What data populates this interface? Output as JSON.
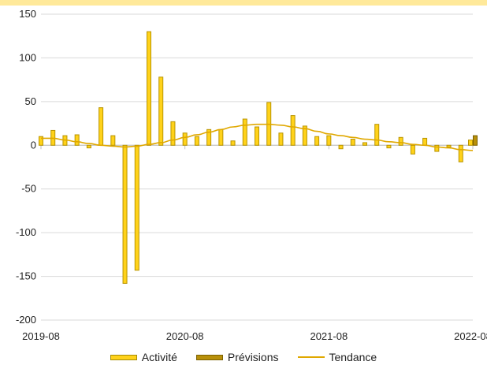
{
  "chart_data": {
    "type": "bar",
    "title": "",
    "xlabel": "",
    "ylabel": "",
    "ylim": [
      -200,
      150
    ],
    "yticks": [
      150,
      100,
      50,
      0,
      -50,
      -100,
      -150,
      -200
    ],
    "x_tick_labels": [
      "2019-08",
      "2020-08",
      "2021-08",
      "2022-08"
    ],
    "grid": true,
    "legend_position": "bottom",
    "series": [
      {
        "name": "Activité",
        "kind": "bar",
        "color": "#ffd21a",
        "border": "#b89400",
        "points": [
          {
            "x": "2019-08",
            "y": 10
          },
          {
            "x": "2019-09",
            "y": 17
          },
          {
            "x": "2019-10",
            "y": 11
          },
          {
            "x": "2019-11",
            "y": 12
          },
          {
            "x": "2019-12",
            "y": -3
          },
          {
            "x": "2020-01",
            "y": 43
          },
          {
            "x": "2020-02",
            "y": 11
          },
          {
            "x": "2020-03",
            "y": -158
          },
          {
            "x": "2020-04",
            "y": -143
          },
          {
            "x": "2020-05",
            "y": 130
          },
          {
            "x": "2020-06",
            "y": 78
          },
          {
            "x": "2020-07",
            "y": 27
          },
          {
            "x": "2020-08",
            "y": 14
          },
          {
            "x": "2020-09",
            "y": 10
          },
          {
            "x": "2020-10",
            "y": 18
          },
          {
            "x": "2020-11",
            "y": 18
          },
          {
            "x": "2020-12",
            "y": 5
          },
          {
            "x": "2021-01",
            "y": 30
          },
          {
            "x": "2021-02",
            "y": 21
          },
          {
            "x": "2021-03",
            "y": 49
          },
          {
            "x": "2021-04",
            "y": 14
          },
          {
            "x": "2021-05",
            "y": 34
          },
          {
            "x": "2021-06",
            "y": 22
          },
          {
            "x": "2021-07",
            "y": 10
          },
          {
            "x": "2021-08",
            "y": 11
          },
          {
            "x": "2021-09",
            "y": -4
          },
          {
            "x": "2021-10",
            "y": 7
          },
          {
            "x": "2021-11",
            "y": 3
          },
          {
            "x": "2021-12",
            "y": 24
          },
          {
            "x": "2022-01",
            "y": -3
          },
          {
            "x": "2022-02",
            "y": 9
          },
          {
            "x": "2022-03",
            "y": -10
          },
          {
            "x": "2022-04",
            "y": 8
          },
          {
            "x": "2022-05",
            "y": -7
          },
          {
            "x": "2022-06",
            "y": -2
          },
          {
            "x": "2022-07",
            "y": -19
          },
          {
            "x": "2022-08",
            "y": 6
          }
        ]
      },
      {
        "name": "Prévisions",
        "kind": "bar",
        "color": "#b8900a",
        "border": "#7a5f00",
        "points": [
          {
            "x": "2022-08",
            "y": 11
          }
        ]
      },
      {
        "name": "Tendance",
        "kind": "line",
        "color": "#e0a800",
        "points": [
          {
            "x": "2019-08",
            "y": 8
          },
          {
            "x": "2019-09",
            "y": 8
          },
          {
            "x": "2019-10",
            "y": 6
          },
          {
            "x": "2019-11",
            "y": 4
          },
          {
            "x": "2019-12",
            "y": 2
          },
          {
            "x": "2020-01",
            "y": 0
          },
          {
            "x": "2020-02",
            "y": -1
          },
          {
            "x": "2020-03",
            "y": -2
          },
          {
            "x": "2020-04",
            "y": -1
          },
          {
            "x": "2020-05",
            "y": 1
          },
          {
            "x": "2020-06",
            "y": 3
          },
          {
            "x": "2020-07",
            "y": 6
          },
          {
            "x": "2020-08",
            "y": 9
          },
          {
            "x": "2020-09",
            "y": 12
          },
          {
            "x": "2020-10",
            "y": 15
          },
          {
            "x": "2020-11",
            "y": 18
          },
          {
            "x": "2020-12",
            "y": 21
          },
          {
            "x": "2021-01",
            "y": 23
          },
          {
            "x": "2021-02",
            "y": 24
          },
          {
            "x": "2021-03",
            "y": 24
          },
          {
            "x": "2021-04",
            "y": 23
          },
          {
            "x": "2021-05",
            "y": 21
          },
          {
            "x": "2021-06",
            "y": 19
          },
          {
            "x": "2021-07",
            "y": 16
          },
          {
            "x": "2021-08",
            "y": 13
          },
          {
            "x": "2021-09",
            "y": 11
          },
          {
            "x": "2021-10",
            "y": 9
          },
          {
            "x": "2021-11",
            "y": 7
          },
          {
            "x": "2021-12",
            "y": 6
          },
          {
            "x": "2022-01",
            "y": 4
          },
          {
            "x": "2022-02",
            "y": 3
          },
          {
            "x": "2022-03",
            "y": 1
          },
          {
            "x": "2022-04",
            "y": 0
          },
          {
            "x": "2022-05",
            "y": -2
          },
          {
            "x": "2022-06",
            "y": -3
          },
          {
            "x": "2022-07",
            "y": -5
          },
          {
            "x": "2022-08",
            "y": -6
          }
        ]
      }
    ]
  },
  "legend": {
    "activite": "Activité",
    "previsions": "Prévisions",
    "tendance": "Tendance"
  },
  "colors": {
    "top_band": "#ffe99a",
    "grid": "#d9d9d9",
    "axis": "#bfbfbf"
  }
}
